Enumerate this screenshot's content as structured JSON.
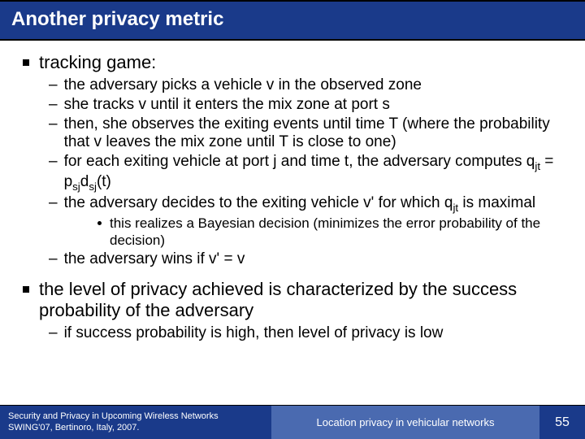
{
  "title": "Another privacy metric",
  "bullets": [
    {
      "text": "tracking game:",
      "sub": [
        {
          "text": "the adversary picks a vehicle v in the observed zone"
        },
        {
          "text": "she tracks v until it enters the mix zone at port s"
        },
        {
          "text": "then, she observes the exiting events until time T (where the probability that v leaves the mix zone until T is close to one)"
        },
        {
          "text_html": "for each exiting vehicle at port j and time t, the adversary computes q<span class=\"sub\">jt</span> = p<span class=\"sub\">sj</span>d<span class=\"sub\">sj</span>(t)"
        },
        {
          "text_html": "the adversary decides to the exiting vehicle v' for which q<span class=\"sub\">jt</span> is maximal",
          "sub": [
            {
              "text": "this realizes a Bayesian decision (minimizes the error probability of the decision)"
            }
          ]
        },
        {
          "text": "the adversary wins if v' = v"
        }
      ]
    },
    {
      "text": "the level of privacy achieved is characterized by the success probability of the adversary",
      "sub": [
        {
          "text": "if success probability is high, then level of privacy is low"
        }
      ]
    }
  ],
  "footer": {
    "left_line1": "Security and Privacy in Upcoming Wireless Networks",
    "left_line2": "SWING'07, Bertinoro, Italy, 2007.",
    "mid": "Location privacy in vehicular networks",
    "page": "55"
  },
  "colors": {
    "title_bg": "#1a3a8a",
    "footer_left_bg": "#1a3a8a",
    "footer_mid_bg": "#4a6ab0",
    "footer_right_bg": "#1a3a8a",
    "text": "#000000",
    "white": "#ffffff"
  }
}
